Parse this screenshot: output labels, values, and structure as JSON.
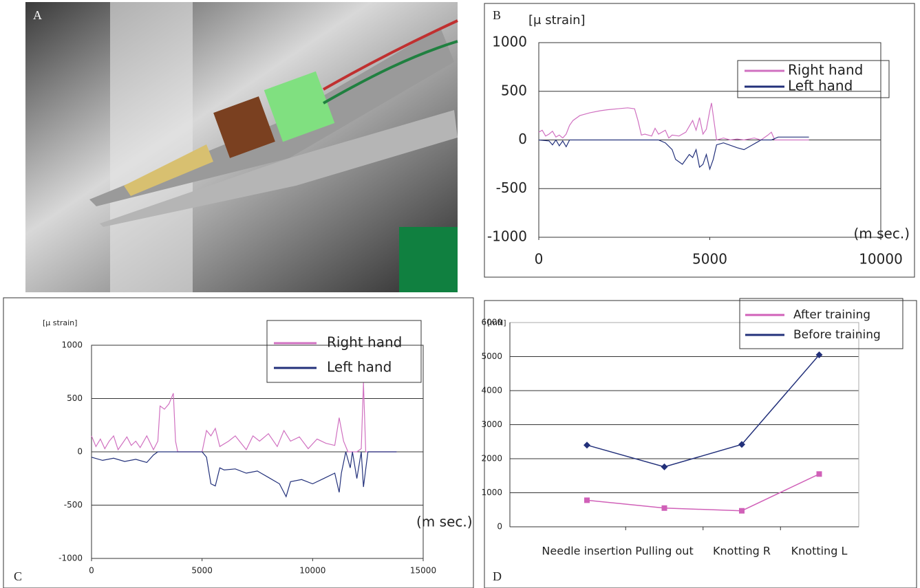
{
  "photo": {
    "label": "A"
  },
  "chart_data": [
    {
      "type": "line",
      "label": "B",
      "y_label": "[μ strain]",
      "x_label": "(m sec.)",
      "xlim": [
        0,
        10000
      ],
      "xticks": [
        0,
        5000,
        10000
      ],
      "ylim": [
        -1000,
        1000
      ],
      "yticks": [
        -1000,
        -500,
        0,
        500,
        1000
      ],
      "grid": true,
      "series": [
        {
          "name": "Right hand",
          "color": "#d070c0",
          "x": [
            0,
            100,
            200,
            300,
            400,
            500,
            600,
            700,
            800,
            900,
            1000,
            1200,
            1500,
            1800,
            2000,
            2300,
            2600,
            2800,
            2900,
            3000,
            3100,
            3300,
            3400,
            3500,
            3700,
            3800,
            3900,
            4100,
            4300,
            4500,
            4600,
            4700,
            4800,
            4900,
            5000,
            5050,
            5100,
            5200,
            5400,
            5600,
            5800,
            6000,
            6300,
            6500,
            6700,
            6800,
            6900,
            7000,
            7500,
            7900
          ],
          "values": [
            80,
            100,
            40,
            60,
            90,
            30,
            50,
            20,
            60,
            150,
            200,
            250,
            280,
            300,
            310,
            320,
            330,
            320,
            200,
            50,
            60,
            40,
            120,
            60,
            100,
            20,
            50,
            40,
            80,
            200,
            100,
            230,
            60,
            110,
            300,
            380,
            250,
            0,
            20,
            0,
            10,
            0,
            20,
            0,
            50,
            80,
            0,
            0,
            0,
            0
          ]
        },
        {
          "name": "Left hand",
          "color": "#22307a",
          "x": [
            0,
            300,
            400,
            500,
            600,
            700,
            800,
            900,
            1000,
            2000,
            3000,
            3500,
            3700,
            3900,
            4000,
            4200,
            4400,
            4500,
            4600,
            4700,
            4800,
            4900,
            5000,
            5100,
            5200,
            5400,
            5800,
            6000,
            6200,
            6400,
            6500,
            6800,
            7000,
            7500,
            7900
          ],
          "values": [
            0,
            -10,
            -50,
            0,
            -60,
            -10,
            -70,
            0,
            0,
            0,
            0,
            0,
            -30,
            -100,
            -200,
            -250,
            -150,
            -180,
            -100,
            -280,
            -250,
            -150,
            -300,
            -200,
            -50,
            -30,
            -80,
            -100,
            -60,
            -20,
            0,
            0,
            30,
            30,
            30
          ]
        }
      ]
    },
    {
      "type": "line",
      "label": "C",
      "y_label": "[μ strain]",
      "x_label": "(m sec.)",
      "xlim": [
        0,
        15000
      ],
      "xticks": [
        0,
        5000,
        10000,
        15000
      ],
      "ylim": [
        -1000,
        1000
      ],
      "yticks": [
        -1000,
        -500,
        0,
        500,
        1000
      ],
      "grid": true,
      "series": [
        {
          "name": "Right hand",
          "color": "#d070c0",
          "x": [
            0,
            200,
            400,
            600,
            800,
            1000,
            1200,
            1400,
            1600,
            1800,
            2000,
            2200,
            2500,
            2800,
            3000,
            3100,
            3300,
            3500,
            3700,
            3800,
            3900,
            4500,
            5000,
            5200,
            5400,
            5600,
            5800,
            6200,
            6500,
            7000,
            7300,
            7600,
            8000,
            8400,
            8700,
            9000,
            9400,
            9800,
            10200,
            10600,
            11000,
            11200,
            11400,
            11600,
            12000,
            12200,
            12300,
            12400,
            12600,
            13000,
            13800
          ],
          "values": [
            150,
            50,
            120,
            30,
            100,
            150,
            20,
            80,
            140,
            60,
            100,
            40,
            150,
            20,
            100,
            430,
            400,
            450,
            550,
            100,
            0,
            0,
            0,
            200,
            150,
            220,
            50,
            100,
            150,
            20,
            150,
            100,
            170,
            50,
            200,
            100,
            140,
            30,
            120,
            80,
            60,
            320,
            100,
            0,
            0,
            30,
            650,
            0,
            0,
            0,
            0
          ]
        },
        {
          "name": "Left hand",
          "color": "#22307a",
          "x": [
            0,
            500,
            1000,
            1500,
            2000,
            2500,
            2800,
            3000,
            4000,
            5000,
            5200,
            5400,
            5600,
            5800,
            6000,
            6500,
            7000,
            7500,
            8000,
            8500,
            8800,
            9000,
            9500,
            10000,
            10500,
            11000,
            11200,
            11300,
            11500,
            11700,
            11800,
            12000,
            12200,
            12300,
            12500,
            13000,
            13800
          ],
          "values": [
            -50,
            -80,
            -60,
            -90,
            -70,
            -100,
            -30,
            0,
            0,
            0,
            -50,
            -300,
            -320,
            -150,
            -170,
            -160,
            -200,
            -180,
            -240,
            -300,
            -420,
            -280,
            -260,
            -300,
            -250,
            -200,
            -380,
            -200,
            0,
            -150,
            0,
            -250,
            0,
            -330,
            0,
            0,
            0
          ]
        }
      ]
    },
    {
      "type": "category-line",
      "label": "D",
      "y_label": "[mN]",
      "categories": [
        "Needle insertion",
        "Pulling out",
        "Knotting R",
        "Knotting L"
      ],
      "ylim": [
        0,
        6000
      ],
      "yticks": [
        0,
        1000,
        2000,
        3000,
        4000,
        5000,
        6000
      ],
      "grid": true,
      "series": [
        {
          "name": "After training",
          "color": "#d060b8",
          "marker": "square",
          "values": [
            780,
            550,
            470,
            1550
          ]
        },
        {
          "name": "Before training",
          "color": "#22307a",
          "marker": "diamond",
          "values": [
            2400,
            1760,
            2420,
            5050
          ]
        }
      ]
    }
  ]
}
